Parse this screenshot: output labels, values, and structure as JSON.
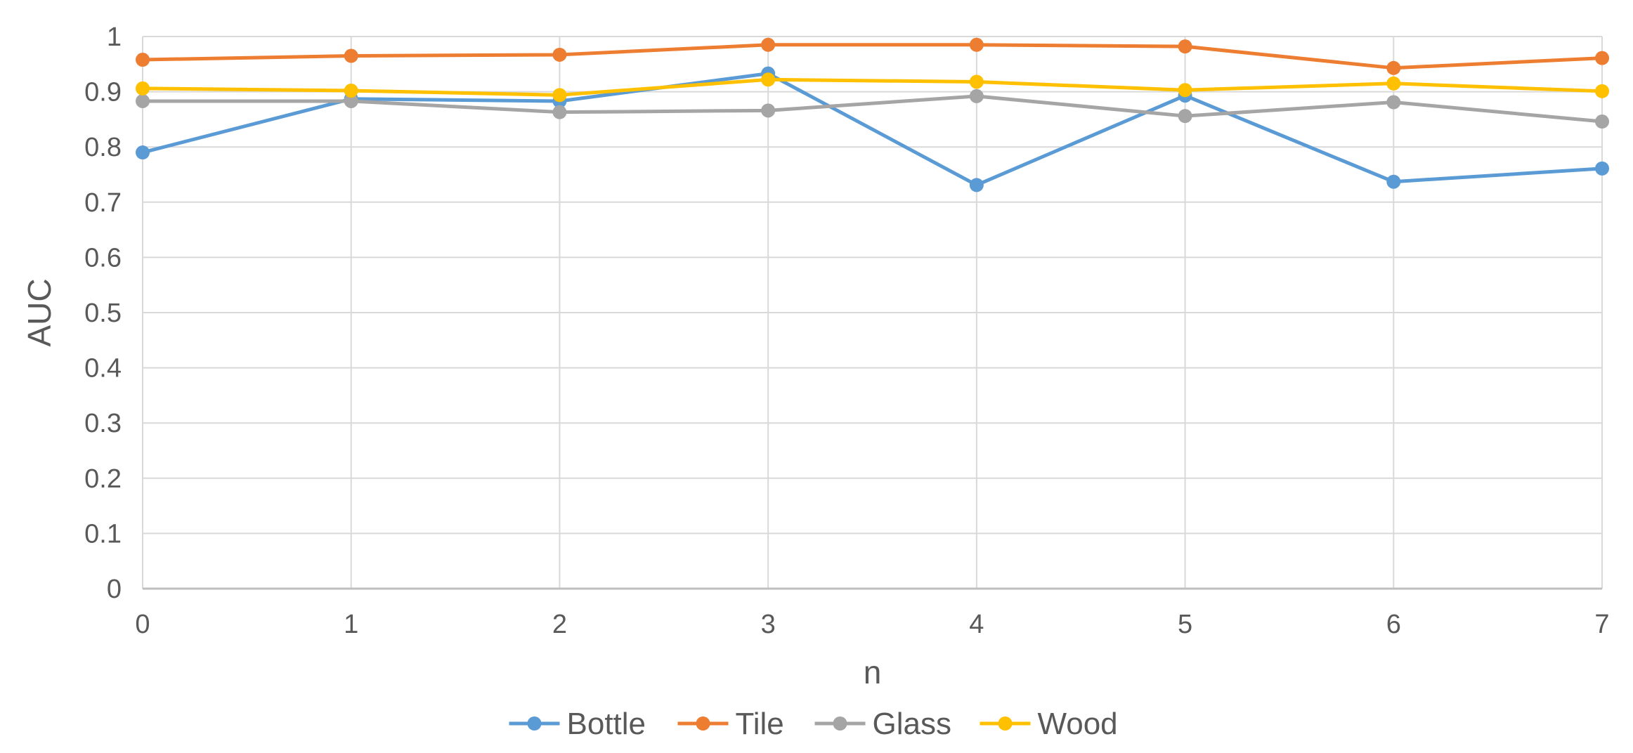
{
  "chart_data": {
    "type": "line",
    "title": "",
    "xlabel": "n",
    "ylabel": "AUC",
    "x": [
      0,
      1,
      2,
      3,
      4,
      5,
      6,
      7
    ],
    "xlim": [
      0,
      7
    ],
    "ylim": [
      0,
      1
    ],
    "yticks": [
      0,
      0.1,
      0.2,
      0.3,
      0.4,
      0.5,
      0.6,
      0.7,
      0.8,
      0.9,
      1
    ],
    "grid": true,
    "legend_position": "bottom",
    "series": [
      {
        "name": "Bottle",
        "color": "#5B9BD5",
        "values": [
          0.79,
          0.887,
          0.883,
          0.933,
          0.731,
          0.893,
          0.737,
          0.761
        ]
      },
      {
        "name": "Tile",
        "color": "#ED7D31",
        "values": [
          0.958,
          0.965,
          0.967,
          0.985,
          0.985,
          0.982,
          0.943,
          0.961
        ]
      },
      {
        "name": "Glass",
        "color": "#A5A5A5",
        "values": [
          0.883,
          0.883,
          0.863,
          0.866,
          0.892,
          0.856,
          0.881,
          0.846
        ]
      },
      {
        "name": "Wood",
        "color": "#FFC000",
        "values": [
          0.906,
          0.902,
          0.894,
          0.922,
          0.918,
          0.903,
          0.915,
          0.901
        ]
      }
    ]
  }
}
